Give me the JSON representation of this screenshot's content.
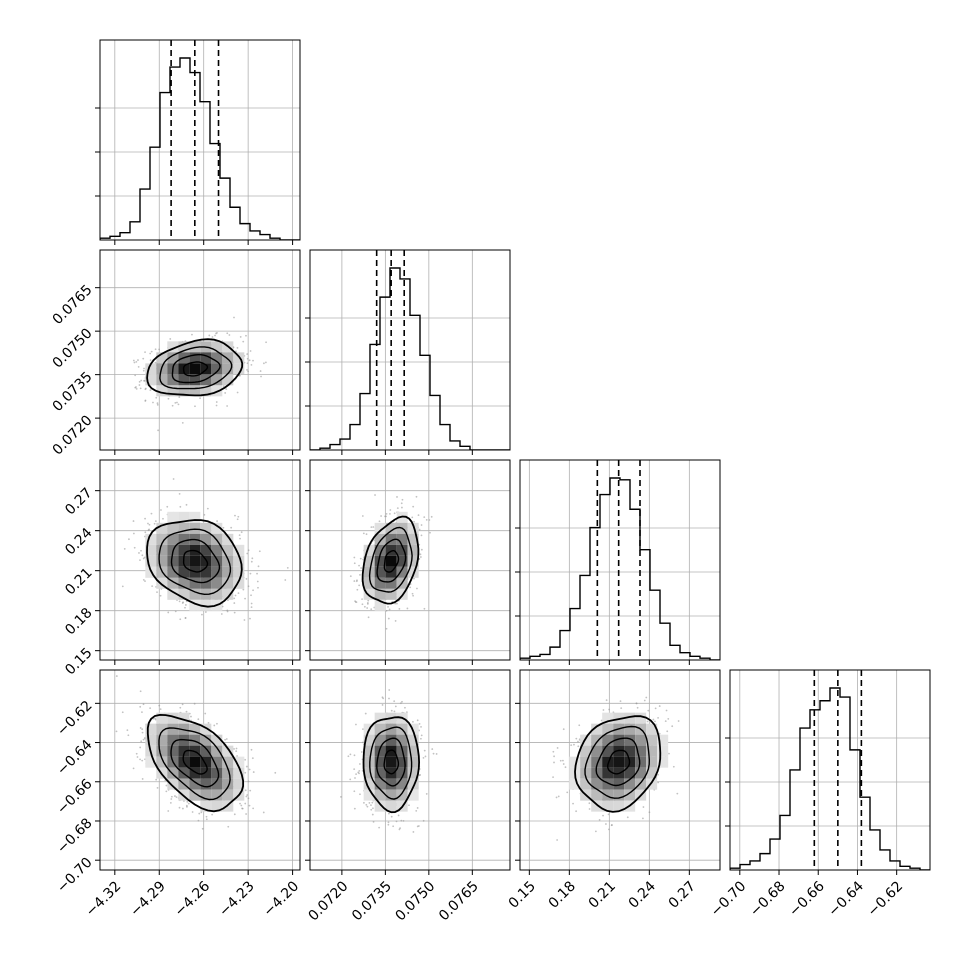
{
  "chart_data": {
    "type": "corner",
    "parameters": [
      {
        "id": "p0",
        "median": -4.266,
        "q16": -4.282,
        "q84": -4.25,
        "sd": 0.016,
        "range": [
          -4.33,
          -4.195
        ],
        "ticks": [
          -4.32,
          -4.29,
          -4.26,
          -4.23,
          -4.2
        ],
        "tick_labels": [
          "−4.32",
          "−4.29",
          "−4.26",
          "−4.23",
          "−4.20"
        ],
        "hist": [
          0.01,
          0.02,
          0.04,
          0.1,
          0.28,
          0.51,
          0.81,
          0.95,
          1.0,
          0.92,
          0.76,
          0.53,
          0.34,
          0.18,
          0.09,
          0.05,
          0.03,
          0.01,
          0.0,
          0.0
        ]
      },
      {
        "id": "p1",
        "median": 0.0737,
        "q16": 0.0732,
        "q84": 0.07415,
        "sd": 0.00048,
        "range": [
          0.0709,
          0.0778
        ],
        "ticks": [
          0.072,
          0.0735,
          0.075,
          0.0765
        ],
        "tick_labels": [
          "0.0720",
          "0.0735",
          "0.0750",
          "0.0765"
        ],
        "hist": [
          0.0,
          0.01,
          0.03,
          0.06,
          0.14,
          0.31,
          0.58,
          0.84,
          1.0,
          0.94,
          0.74,
          0.52,
          0.3,
          0.14,
          0.05,
          0.02,
          0.0,
          0.0,
          0.0,
          0.0
        ]
      },
      {
        "id": "p2",
        "median": 0.217,
        "q16": 0.201,
        "q84": 0.233,
        "sd": 0.016,
        "range": [
          0.143,
          0.293
        ],
        "ticks": [
          0.15,
          0.18,
          0.21,
          0.24,
          0.27
        ],
        "tick_labels": [
          "0.15",
          "0.18",
          "0.21",
          "0.24",
          "0.27"
        ],
        "hist": [
          0.01,
          0.02,
          0.03,
          0.07,
          0.16,
          0.28,
          0.46,
          0.72,
          0.9,
          0.99,
          0.98,
          0.82,
          0.6,
          0.38,
          0.2,
          0.08,
          0.04,
          0.02,
          0.01,
          0.0
        ]
      },
      {
        "id": "p3",
        "median": -0.65,
        "q16": -0.662,
        "q84": -0.638,
        "sd": 0.012,
        "range": [
          -0.705,
          -0.603
        ],
        "ticks": [
          -0.7,
          -0.68,
          -0.66,
          -0.64,
          -0.62
        ],
        "tick_labels": [
          "−0.70",
          "−0.68",
          "−0.66",
          "−0.64",
          "−0.62"
        ],
        "hist": [
          0.01,
          0.03,
          0.05,
          0.09,
          0.17,
          0.3,
          0.55,
          0.78,
          0.88,
          0.93,
          1.0,
          0.95,
          0.66,
          0.4,
          0.22,
          0.11,
          0.05,
          0.02,
          0.01,
          0.0
        ]
      }
    ],
    "correlations": [
      {
        "row": 1,
        "col": 0,
        "rho": 0.2
      },
      {
        "row": 2,
        "col": 0,
        "rho": -0.2
      },
      {
        "row": 2,
        "col": 1,
        "rho": 0.3
      },
      {
        "row": 3,
        "col": 0,
        "rho": -0.5
      },
      {
        "row": 3,
        "col": 1,
        "rho": 0.0
      },
      {
        "row": 3,
        "col": 2,
        "rho": 0.2
      }
    ],
    "quantile_lines": "dashed",
    "contour_levels_sigma": [
      0.5,
      1.0,
      1.5,
      2.0
    ],
    "grid": true,
    "colors": {
      "line": "#000000",
      "points": "#9a9a9a",
      "grid": "#b0b0b0"
    }
  }
}
